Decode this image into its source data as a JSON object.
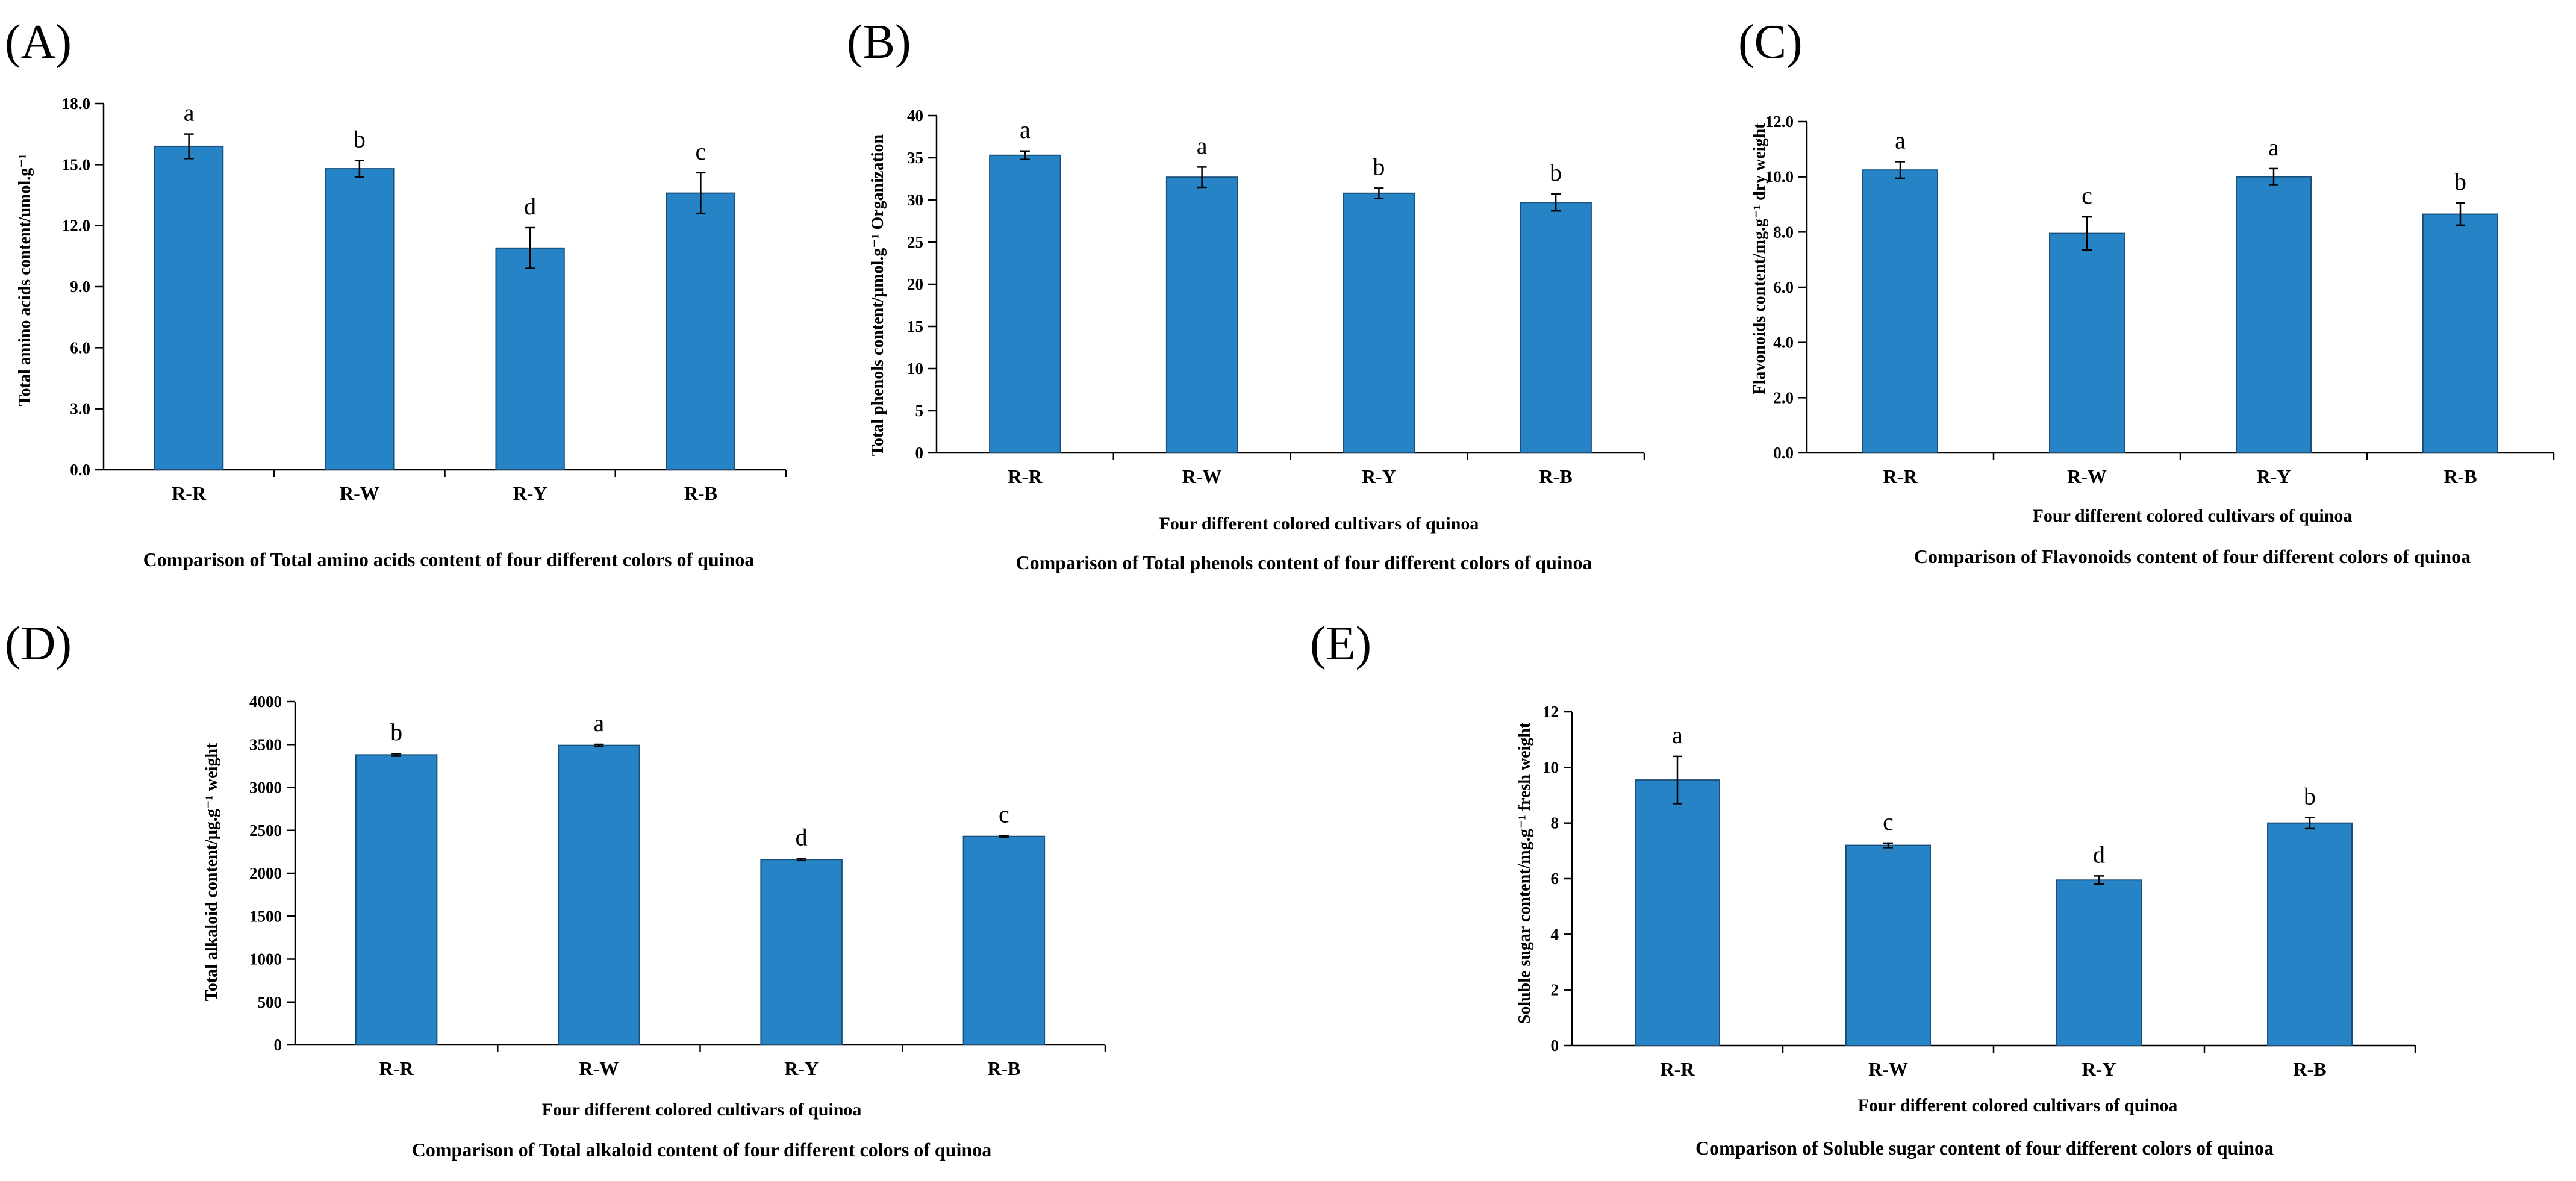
{
  "colors": {
    "bar": "#2683c6",
    "bar_edge": "#1a4f7a",
    "axis": "#000000"
  },
  "chart_data": [
    {
      "panel": "(A)",
      "type": "bar",
      "categories": [
        "R-R",
        "R-W",
        "R-Y",
        "R-B"
      ],
      "values": [
        15.9,
        14.8,
        10.9,
        13.6
      ],
      "errors": [
        0.6,
        0.4,
        1.0,
        1.0
      ],
      "significance": [
        "a",
        "b",
        "d",
        "c"
      ],
      "ylabel": "Total amino acids content/umol.g⁻¹",
      "xlabel": "",
      "ylim": [
        0,
        18
      ],
      "yticks": [
        "0.0",
        "3.0",
        "6.0",
        "9.0",
        "12.0",
        "15.0",
        "18.0"
      ],
      "caption": "Comparison of Total amino acids content of four different colors of quinoa"
    },
    {
      "panel": "(B)",
      "type": "bar",
      "categories": [
        "R-R",
        "R-W",
        "R-Y",
        "R-B"
      ],
      "values": [
        35.3,
        32.7,
        30.8,
        29.7
      ],
      "errors": [
        0.5,
        1.2,
        0.6,
        1.0
      ],
      "significance": [
        "a",
        "a",
        "b",
        "b"
      ],
      "ylabel": "Total phenols content/μmol.g⁻¹ Organization",
      "xlabel": "Four different colored cultivars of quinoa",
      "ylim": [
        0,
        40
      ],
      "yticks": [
        "0",
        "5",
        "10",
        "15",
        "20",
        "25",
        "30",
        "35",
        "40"
      ],
      "caption": "Comparison of Total phenols content of four different colors of quinoa"
    },
    {
      "panel": "(C)",
      "type": "bar",
      "categories": [
        "R-R",
        "R-W",
        "R-Y",
        "R-B"
      ],
      "values": [
        10.25,
        7.95,
        10.0,
        8.65
      ],
      "errors": [
        0.3,
        0.6,
        0.3,
        0.4
      ],
      "significance": [
        "a",
        "c",
        "a",
        "b"
      ],
      "ylabel": "Flavonoids content/mg.g⁻¹ dry weight",
      "xlabel": "Four different colored cultivars of quinoa",
      "ylim": [
        0,
        12
      ],
      "yticks": [
        "0.0",
        "2.0",
        "4.0",
        "6.0",
        "8.0",
        "10.0",
        "12.0"
      ],
      "caption": "Comparison of Flavonoids content of four different colors of quinoa"
    },
    {
      "panel": "(D)",
      "type": "bar",
      "categories": [
        "R-R",
        "R-W",
        "R-Y",
        "R-B"
      ],
      "values": [
        3380,
        3490,
        2160,
        2430
      ],
      "errors": [
        15,
        12,
        12,
        10
      ],
      "significance": [
        "b",
        "a",
        "d",
        "c"
      ],
      "ylabel": "Total alkaloid content/μg.g⁻¹ weight",
      "xlabel": "Four different colored cultivars of quinoa",
      "ylim": [
        0,
        4000
      ],
      "yticks": [
        "0",
        "500",
        "1000",
        "1500",
        "2000",
        "2500",
        "3000",
        "3500",
        "4000"
      ],
      "caption": "Comparison of Total alkaloid content of four different colors of quinoa"
    },
    {
      "panel": "(E)",
      "type": "bar",
      "categories": [
        "R-R",
        "R-W",
        "R-Y",
        "R-B"
      ],
      "values": [
        9.55,
        7.2,
        5.95,
        8.0
      ],
      "errors": [
        0.85,
        0.08,
        0.15,
        0.2
      ],
      "significance": [
        "a",
        "c",
        "d",
        "b"
      ],
      "ylabel": "Soluble sugar content/mg.g⁻¹ fresh weight",
      "xlabel": "Four different colored cultivars of quinoa",
      "ylim": [
        0,
        12
      ],
      "yticks": [
        "0",
        "2",
        "4",
        "6",
        "8",
        "10",
        "12"
      ],
      "caption": "Comparison of Soluble sugar content of four different colors of quinoa"
    }
  ]
}
